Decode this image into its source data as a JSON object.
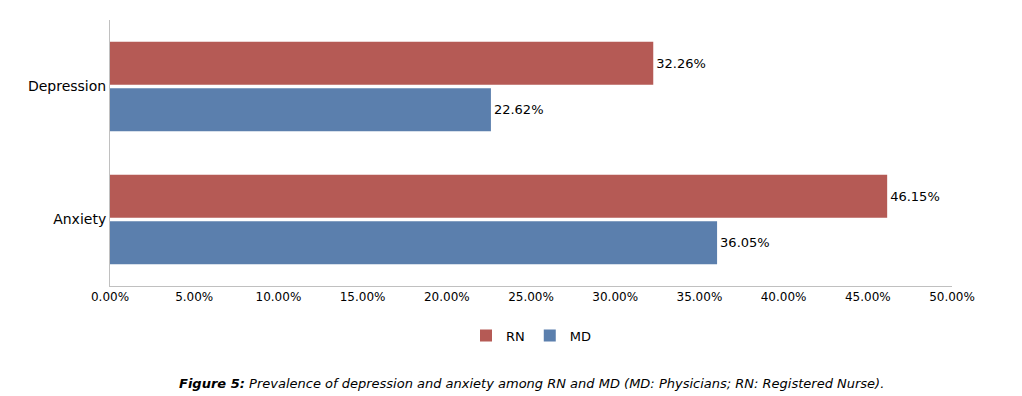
{
  "chart_data": {
    "type": "bar",
    "orientation": "horizontal",
    "categories": [
      "Depression",
      "Anxiety"
    ],
    "series": [
      {
        "name": "RN",
        "color": "#b55a55",
        "values": [
          32.26,
          46.15
        ],
        "value_labels": [
          "32.26%",
          "46.15%"
        ]
      },
      {
        "name": "MD",
        "color": "#5b7fad",
        "values": [
          22.62,
          36.05
        ],
        "value_labels": [
          "22.62%",
          "36.05%"
        ]
      }
    ],
    "data_labels": true,
    "xlim": [
      0,
      50
    ],
    "xticks": [
      {
        "value": 0,
        "label": "0.00%"
      },
      {
        "value": 5,
        "label": "5.00%"
      },
      {
        "value": 10,
        "label": "10.00%"
      },
      {
        "value": 15,
        "label": "15.00%"
      },
      {
        "value": 20,
        "label": "20.00%"
      },
      {
        "value": 25,
        "label": "25.00%"
      },
      {
        "value": 30,
        "label": "30.00%"
      },
      {
        "value": 35,
        "label": "35.00%"
      },
      {
        "value": 40,
        "label": "40.00%"
      },
      {
        "value": 45,
        "label": "45.00%"
      },
      {
        "value": 50,
        "label": "50.00%"
      }
    ],
    "grid": false,
    "legend": "bottom",
    "annotations": [
      "Figure 5:",
      " Prevalence of depression and anxiety among RN and MD (MD: Physicians; RN: Registered Nurse)."
    ]
  }
}
